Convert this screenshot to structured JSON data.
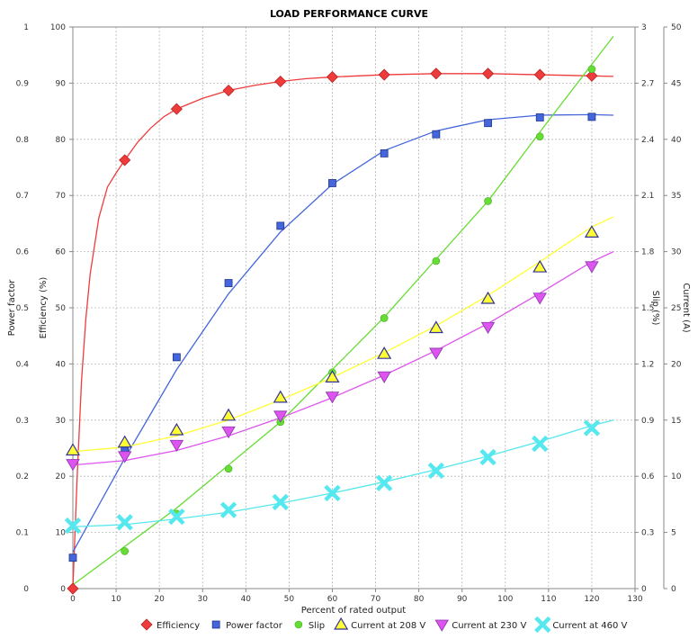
{
  "chart_data": {
    "type": "scatter",
    "title": "LOAD PERFORMANCE CURVE",
    "xlabel": "Percent of rated output",
    "xlim": [
      0,
      130
    ],
    "x_ticks": [
      "0",
      "10",
      "20",
      "30",
      "40",
      "50",
      "60",
      "70",
      "80",
      "90",
      "100",
      "110",
      "120",
      "130"
    ],
    "grid": true,
    "legend_position": "bottom",
    "axes": {
      "power_factor": {
        "label": "Power factor",
        "side": "left-outer",
        "lim": [
          0,
          1
        ],
        "ticks": [
          "0",
          "0.1",
          "0.2",
          "0.3",
          "0.4",
          "0.5",
          "0.6",
          "0.7",
          "0.8",
          "0.9",
          "1"
        ]
      },
      "efficiency": {
        "label": "Efficiency (%)",
        "side": "left-inner",
        "lim": [
          0,
          100
        ],
        "ticks": [
          "0",
          "10",
          "20",
          "30",
          "40",
          "50",
          "60",
          "70",
          "80",
          "90",
          "100"
        ]
      },
      "slip": {
        "label": "Slip (%)",
        "side": "right-inner",
        "lim": [
          0,
          3
        ],
        "ticks": [
          "0",
          "0.3",
          "0.6",
          "0.9",
          "1.2",
          "1.5",
          "1.8",
          "2.1",
          "2.4",
          "2.7",
          "3"
        ]
      },
      "current": {
        "label": "Current (A)",
        "side": "right-outer",
        "lim": [
          0,
          50
        ],
        "ticks": [
          "0",
          "5",
          "10",
          "15",
          "20",
          "25",
          "30",
          "35",
          "40",
          "45",
          "50"
        ]
      }
    },
    "series": [
      {
        "name": "Efficiency",
        "axis": "efficiency",
        "marker": "diamond",
        "color": "#ee3b3b",
        "points": [
          [
            0,
            0
          ],
          [
            12,
            76.3
          ],
          [
            24,
            85.4
          ],
          [
            36,
            88.7
          ],
          [
            48,
            90.3
          ],
          [
            60,
            91.1
          ],
          [
            72,
            91.5
          ],
          [
            84,
            91.7
          ],
          [
            96,
            91.7
          ],
          [
            108,
            91.5
          ],
          [
            120,
            91.3
          ]
        ],
        "curve": [
          [
            0,
            0
          ],
          [
            1,
            20
          ],
          [
            2,
            37
          ],
          [
            3,
            48
          ],
          [
            4,
            56
          ],
          [
            6,
            66
          ],
          [
            8,
            71.5
          ],
          [
            10,
            74
          ],
          [
            12,
            76.3
          ],
          [
            15,
            79.5
          ],
          [
            18,
            82
          ],
          [
            21,
            84
          ],
          [
            24,
            85.4
          ],
          [
            30,
            87.3
          ],
          [
            36,
            88.7
          ],
          [
            42,
            89.6
          ],
          [
            48,
            90.3
          ],
          [
            54,
            90.8
          ],
          [
            60,
            91.1
          ],
          [
            72,
            91.5
          ],
          [
            84,
            91.7
          ],
          [
            96,
            91.7
          ],
          [
            108,
            91.5
          ],
          [
            120,
            91.3
          ],
          [
            125,
            91.2
          ]
        ]
      },
      {
        "name": "Power factor",
        "axis": "power_factor",
        "marker": "square",
        "color": "#4466dd",
        "points": [
          [
            0,
            0.055
          ],
          [
            12,
            0.249
          ],
          [
            24,
            0.412
          ],
          [
            36,
            0.544
          ],
          [
            48,
            0.646
          ],
          [
            60,
            0.722
          ],
          [
            72,
            0.775
          ],
          [
            84,
            0.809
          ],
          [
            96,
            0.829
          ],
          [
            108,
            0.839
          ],
          [
            120,
            0.84
          ]
        ],
        "curve": [
          [
            0,
            0.065
          ],
          [
            12,
            0.232
          ],
          [
            24,
            0.39
          ],
          [
            36,
            0.525
          ],
          [
            48,
            0.635
          ],
          [
            60,
            0.72
          ],
          [
            72,
            0.78
          ],
          [
            84,
            0.815
          ],
          [
            96,
            0.835
          ],
          [
            108,
            0.843
          ],
          [
            120,
            0.844
          ],
          [
            125,
            0.843
          ]
        ]
      },
      {
        "name": "Slip",
        "axis": "slip",
        "marker": "circle",
        "color": "#66dd33",
        "points": [
          [
            12,
            0.2
          ],
          [
            24,
            0.4
          ],
          [
            36,
            0.64
          ],
          [
            48,
            0.89
          ],
          [
            60,
            1.155
          ],
          [
            72,
            1.445
          ],
          [
            84,
            1.75
          ],
          [
            96,
            2.07
          ],
          [
            108,
            2.415
          ],
          [
            120,
            2.775
          ]
        ],
        "curve": [
          [
            0,
            0.02
          ],
          [
            24,
            0.43
          ],
          [
            48,
            0.89
          ],
          [
            72,
            1.45
          ],
          [
            96,
            2.07
          ],
          [
            110,
            2.5
          ],
          [
            125,
            2.95
          ]
        ]
      },
      {
        "name": "Current at 208 V",
        "axis": "current",
        "marker": "triangle-up",
        "color": "#ffff33",
        "stroke": "#333399",
        "points": [
          [
            0,
            12.3
          ],
          [
            12,
            13.0
          ],
          [
            24,
            14.1
          ],
          [
            36,
            15.4
          ],
          [
            48,
            17.0
          ],
          [
            60,
            18.8
          ],
          [
            72,
            20.9
          ],
          [
            84,
            23.2
          ],
          [
            96,
            25.8
          ],
          [
            108,
            28.6
          ],
          [
            120,
            31.7
          ]
        ],
        "curve": [
          [
            0,
            12.2
          ],
          [
            12,
            12.6
          ],
          [
            24,
            13.6
          ],
          [
            36,
            15.0
          ],
          [
            48,
            16.8
          ],
          [
            60,
            18.8
          ],
          [
            72,
            21.0
          ],
          [
            84,
            23.4
          ],
          [
            96,
            26.1
          ],
          [
            108,
            29.1
          ],
          [
            120,
            32.2
          ],
          [
            125,
            33.1
          ]
        ]
      },
      {
        "name": "Current at 230 V",
        "axis": "current",
        "marker": "triangle-down",
        "color": "#dd55ee",
        "points": [
          [
            0,
            11.1
          ],
          [
            12,
            11.8
          ],
          [
            24,
            12.8
          ],
          [
            36,
            14.0
          ],
          [
            48,
            15.4
          ],
          [
            60,
            17.1
          ],
          [
            72,
            18.9
          ],
          [
            84,
            21.0
          ],
          [
            96,
            23.3
          ],
          [
            108,
            25.9
          ],
          [
            120,
            28.7
          ]
        ],
        "curve": [
          [
            0,
            11.0
          ],
          [
            12,
            11.4
          ],
          [
            24,
            12.3
          ],
          [
            36,
            13.6
          ],
          [
            48,
            15.2
          ],
          [
            60,
            17.0
          ],
          [
            72,
            19.0
          ],
          [
            84,
            21.2
          ],
          [
            96,
            23.6
          ],
          [
            108,
            26.3
          ],
          [
            120,
            29.1
          ],
          [
            125,
            30.0
          ]
        ]
      },
      {
        "name": "Current at 460 V",
        "axis": "current",
        "marker": "x",
        "color": "#55e8ee",
        "points": [
          [
            0,
            5.6
          ],
          [
            12,
            5.9
          ],
          [
            24,
            6.4
          ],
          [
            36,
            7.0
          ],
          [
            48,
            7.7
          ],
          [
            60,
            8.5
          ],
          [
            72,
            9.4
          ],
          [
            84,
            10.5
          ],
          [
            96,
            11.7
          ],
          [
            108,
            12.9
          ],
          [
            120,
            14.3
          ]
        ],
        "curve": [
          [
            0,
            5.5
          ],
          [
            12,
            5.7
          ],
          [
            24,
            6.2
          ],
          [
            36,
            6.8
          ],
          [
            48,
            7.6
          ],
          [
            60,
            8.5
          ],
          [
            72,
            9.5
          ],
          [
            84,
            10.6
          ],
          [
            96,
            11.8
          ],
          [
            108,
            13.1
          ],
          [
            120,
            14.5
          ],
          [
            125,
            15.0
          ]
        ]
      }
    ]
  }
}
